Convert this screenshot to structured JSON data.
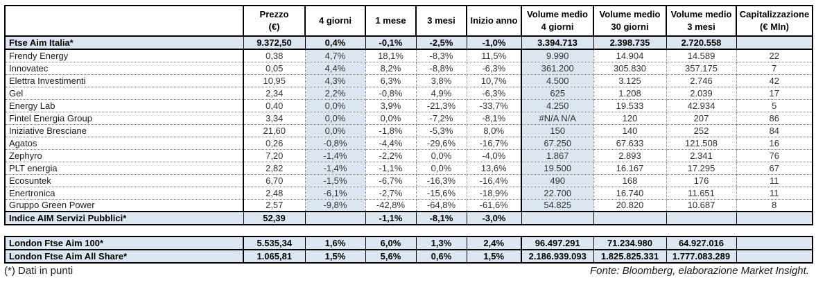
{
  "colors": {
    "row_shade": "#dce6f1",
    "border": "#000000"
  },
  "main_table": {
    "headers": [
      "",
      "Prezzo\n(€)",
      "4 giorni",
      "1 mese",
      "3 mesi",
      "Inizio anno",
      "Volume medio\n4 giorni",
      "Volume medio\n30 giorni",
      "Volume medio\n3 mesi",
      "Capitalizzazione\n(€ Mln)"
    ],
    "shaded_cell_indexes": [
      1,
      5
    ],
    "rows": [
      {
        "name": "Ftse Aim Italia*",
        "bold": true,
        "cells": [
          "9.372,50",
          "0,4%",
          "-0,1%",
          "-2,5%",
          "-1,0%",
          "3.394.713",
          "2.398.735",
          "2.720.558",
          ""
        ]
      },
      {
        "name": "Frendy Energy",
        "cells": [
          "0,38",
          "4,7%",
          "18,1%",
          "-8,3%",
          "11,5%",
          "9.990",
          "14.904",
          "14.589",
          "22"
        ]
      },
      {
        "name": "Innovatec",
        "cells": [
          "0,05",
          "4,4%",
          "8,2%",
          "-8,8%",
          "-6,3%",
          "361.200",
          "305.830",
          "357.175",
          "7"
        ]
      },
      {
        "name": "Elettra Investimenti",
        "cells": [
          "10,95",
          "4,3%",
          "6,3%",
          "3,8%",
          "10,7%",
          "4.500",
          "3.125",
          "2.746",
          "42"
        ]
      },
      {
        "name": "Gel",
        "cells": [
          "2,34",
          "2,2%",
          "-0,8%",
          "4,9%",
          "-6,3%",
          "625",
          "1.208",
          "2.039",
          "17"
        ]
      },
      {
        "name": "Energy Lab",
        "cells": [
          "0,40",
          "0,0%",
          "3,9%",
          "-21,3%",
          "-33,7%",
          "4.250",
          "19.533",
          "42.934",
          "5"
        ]
      },
      {
        "name": "Fintel Energia Group",
        "cells": [
          "3,34",
          "0,0%",
          "0,0%",
          "-7,2%",
          "-8,1%",
          "#N/A N/A",
          "120",
          "207",
          "86"
        ]
      },
      {
        "name": "Iniziative Bresciane",
        "cells": [
          "21,60",
          "0,0%",
          "-1,8%",
          "-5,3%",
          "8,0%",
          "150",
          "140",
          "252",
          "84"
        ]
      },
      {
        "name": "Agatos",
        "cells": [
          "0,26",
          "-0,8%",
          "-4,4%",
          "-29,6%",
          "-16,7%",
          "67.250",
          "67.633",
          "121.508",
          "16"
        ]
      },
      {
        "name": "Zephyro",
        "cells": [
          "7,20",
          "-1,4%",
          "-2,2%",
          "0,0%",
          "-4,0%",
          "1.867",
          "2.893",
          "2.341",
          "76"
        ]
      },
      {
        "name": "PLT energia",
        "cells": [
          "2,82",
          "-1,4%",
          "-1,1%",
          "0,0%",
          "13,6%",
          "19.500",
          "16.167",
          "17.295",
          "67"
        ]
      },
      {
        "name": "Ecosuntek",
        "cells": [
          "6,70",
          "-1,5%",
          "-6,7%",
          "-16,3%",
          "-16,4%",
          "490",
          "168",
          "176",
          "11"
        ]
      },
      {
        "name": "Enertronica",
        "cells": [
          "2,48",
          "-6,1%",
          "-2,7%",
          "-15,6%",
          "-18,9%",
          "22.700",
          "16.740",
          "11.651",
          "11"
        ]
      },
      {
        "name": "Gruppo Green Power",
        "cells": [
          "2,57",
          "-9,8%",
          "-42,8%",
          "-64,8%",
          "-61,6%",
          "54.825",
          "20.820",
          "10.687",
          "8"
        ]
      },
      {
        "name": "Indice AIM Servizi Pubblici*",
        "bold": true,
        "cells": [
          "52,39",
          "",
          "-1,1%",
          "-8,1%",
          "-3,0%",
          "",
          "",
          "",
          ""
        ]
      }
    ]
  },
  "london_table": {
    "rows": [
      {
        "name": "London Ftse Aim 100*",
        "bold": true,
        "cells": [
          "5.535,34",
          "1,6%",
          "6,0%",
          "1,3%",
          "2,4%",
          "96.497.291",
          "71.234.980",
          "64.927.016",
          ""
        ]
      },
      {
        "name": "London Ftse Aim All Share*",
        "bold": true,
        "cells": [
          "1.065,81",
          "1,5%",
          "5,6%",
          "0,6%",
          "1,5%",
          "2.186.939.093",
          "1.825.825.331",
          "1.777.083.289",
          ""
        ]
      }
    ]
  },
  "footer": {
    "note": "(*) Dati in punti",
    "source": "Fonte: Bloomberg, elaborazione Market Insight."
  }
}
